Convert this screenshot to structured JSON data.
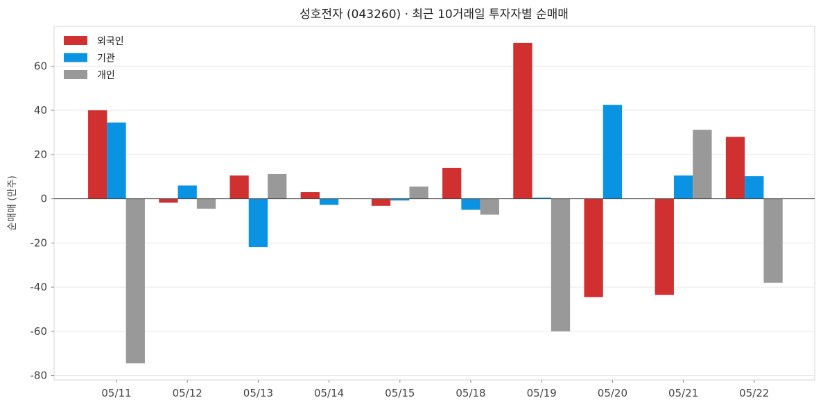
{
  "chart_data": {
    "type": "bar",
    "title": "성호전자 (043260) · 최근 10거래일 투자자별 순매매",
    "ylabel": "순매매 (만주)",
    "xlabel": "",
    "categories": [
      "05/11",
      "05/12",
      "05/13",
      "05/14",
      "05/15",
      "05/18",
      "05/19",
      "05/20",
      "05/21",
      "05/22"
    ],
    "series": [
      {
        "name": "외국인",
        "color": "#d0302f",
        "values": [
          40,
          -1.8,
          10.5,
          3,
          -3.2,
          14,
          70.5,
          -44.5,
          -43.5,
          28
        ]
      },
      {
        "name": "기관",
        "color": "#0a93e3",
        "values": [
          34.5,
          6,
          -21.8,
          -2.8,
          -0.8,
          -5,
          0.5,
          42.5,
          10.5,
          10.2
        ]
      },
      {
        "name": "개인",
        "color": "#999999",
        "values": [
          -74.5,
          -4.5,
          11.2,
          0,
          5.5,
          -7.2,
          -60,
          0,
          31.2,
          -38
        ]
      }
    ],
    "ylim": [
      -82,
      78
    ],
    "yticks": [
      -80,
      -60,
      -40,
      -20,
      0,
      20,
      40,
      60
    ],
    "grid": true,
    "legend_position": "top-left"
  }
}
